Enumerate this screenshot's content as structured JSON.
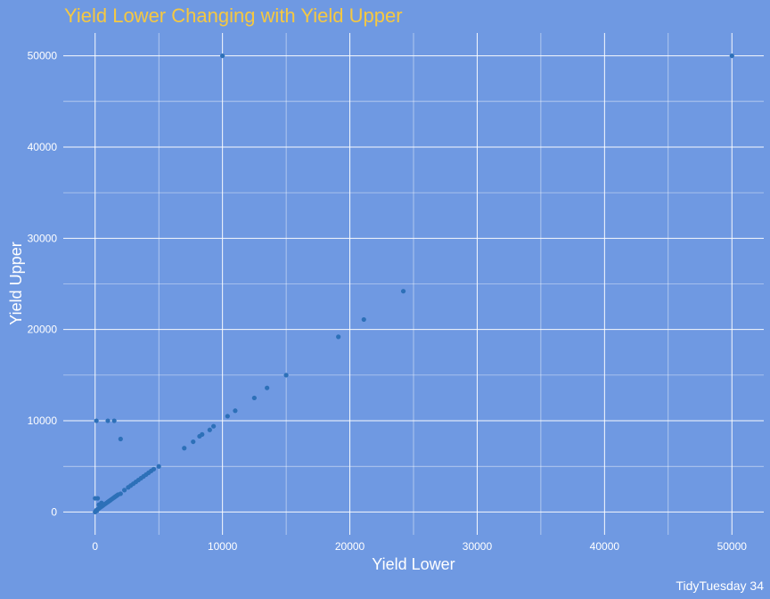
{
  "chart_data": {
    "type": "scatter",
    "title": "Yield Lower Changing with Yield Upper",
    "xlabel": "Yield Lower",
    "ylabel": "Yield Upper",
    "caption": "TidyTuesday 34",
    "xlim": [
      -2500,
      52500
    ],
    "ylim": [
      -2500,
      52500
    ],
    "xticks": [
      0,
      10000,
      20000,
      30000,
      40000,
      50000
    ],
    "yticks": [
      0,
      10000,
      20000,
      30000,
      40000,
      50000
    ],
    "grid": true,
    "legend": "none",
    "colors": {
      "background": "#6f99e2",
      "point": "#2d70b8",
      "title": "#f5c842",
      "grid": "#ffffff"
    },
    "points": [
      {
        "x": 0,
        "y": 0
      },
      {
        "x": 50,
        "y": 100
      },
      {
        "x": 100,
        "y": 200
      },
      {
        "x": 150,
        "y": 150
      },
      {
        "x": 200,
        "y": 300
      },
      {
        "x": 300,
        "y": 400
      },
      {
        "x": 400,
        "y": 500
      },
      {
        "x": 500,
        "y": 600
      },
      {
        "x": 600,
        "y": 700
      },
      {
        "x": 700,
        "y": 800
      },
      {
        "x": 800,
        "y": 900
      },
      {
        "x": 900,
        "y": 1000
      },
      {
        "x": 1000,
        "y": 1100
      },
      {
        "x": 1100,
        "y": 1200
      },
      {
        "x": 1200,
        "y": 1300
      },
      {
        "x": 1300,
        "y": 1400
      },
      {
        "x": 1400,
        "y": 1500
      },
      {
        "x": 1500,
        "y": 1600
      },
      {
        "x": 1600,
        "y": 1700
      },
      {
        "x": 1700,
        "y": 1800
      },
      {
        "x": 1800,
        "y": 1900
      },
      {
        "x": 2000,
        "y": 2000
      },
      {
        "x": 2300,
        "y": 2400
      },
      {
        "x": 2600,
        "y": 2700
      },
      {
        "x": 2800,
        "y": 2900
      },
      {
        "x": 3000,
        "y": 3100
      },
      {
        "x": 3200,
        "y": 3300
      },
      {
        "x": 3400,
        "y": 3500
      },
      {
        "x": 3600,
        "y": 3700
      },
      {
        "x": 3800,
        "y": 3900
      },
      {
        "x": 4000,
        "y": 4100
      },
      {
        "x": 4200,
        "y": 4300
      },
      {
        "x": 4400,
        "y": 4500
      },
      {
        "x": 4600,
        "y": 4700
      },
      {
        "x": 5000,
        "y": 5000
      },
      {
        "x": 0,
        "y": 1500
      },
      {
        "x": 200,
        "y": 1500
      },
      {
        "x": 300,
        "y": 800
      },
      {
        "x": 500,
        "y": 1000
      },
      {
        "x": 100,
        "y": 10000
      },
      {
        "x": 1000,
        "y": 10000
      },
      {
        "x": 1500,
        "y": 10000
      },
      {
        "x": 2000,
        "y": 8000
      },
      {
        "x": 7000,
        "y": 7000
      },
      {
        "x": 7700,
        "y": 7700
      },
      {
        "x": 8200,
        "y": 8300
      },
      {
        "x": 8400,
        "y": 8500
      },
      {
        "x": 9000,
        "y": 9000
      },
      {
        "x": 9300,
        "y": 9400
      },
      {
        "x": 10400,
        "y": 10500
      },
      {
        "x": 11000,
        "y": 11100
      },
      {
        "x": 12500,
        "y": 12500
      },
      {
        "x": 13500,
        "y": 13600
      },
      {
        "x": 15000,
        "y": 15000
      },
      {
        "x": 19100,
        "y": 19200
      },
      {
        "x": 21100,
        "y": 21100
      },
      {
        "x": 24200,
        "y": 24200
      },
      {
        "x": 10000,
        "y": 50000
      },
      {
        "x": 50000,
        "y": 50000
      }
    ]
  }
}
